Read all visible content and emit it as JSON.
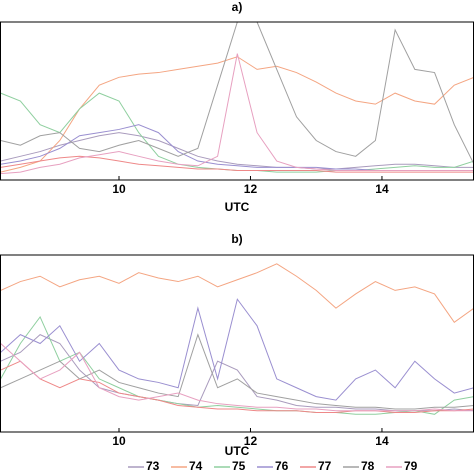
{
  "chart_data": [
    {
      "type": "line",
      "title": "a)",
      "xlabel": "UTC",
      "x": [
        8.2,
        8.5,
        8.8,
        9.1,
        9.4,
        9.7,
        10,
        10.3,
        10.6,
        10.9,
        11.2,
        11.5,
        11.8,
        12.1,
        12.4,
        12.7,
        13,
        13.3,
        13.6,
        13.9,
        14.2,
        14.5,
        14.8,
        15.1,
        15.4
      ],
      "xlim": [
        8.19,
        15.4
      ],
      "xticks": [
        10,
        12,
        14
      ],
      "ylim": [
        0,
        100
      ],
      "series": [
        {
          "color": "#a99bbd",
          "values": [
            12,
            15,
            18,
            22,
            25,
            28,
            30,
            28,
            25,
            20,
            15,
            12,
            10,
            9,
            8,
            8,
            7,
            7,
            8,
            9,
            10,
            10,
            9,
            8,
            8
          ]
        },
        {
          "color": "#f4a582",
          "values": [
            5,
            8,
            12,
            25,
            45,
            60,
            65,
            67,
            68,
            70,
            72,
            74,
            78,
            70,
            72,
            68,
            62,
            55,
            50,
            48,
            55,
            50,
            48,
            60,
            65
          ]
        },
        {
          "color": "#8fcf9f",
          "values": [
            55,
            50,
            35,
            30,
            45,
            55,
            50,
            30,
            15,
            10,
            8,
            7,
            6,
            6,
            5,
            5,
            5,
            6,
            6,
            7,
            8,
            9,
            8,
            8,
            12
          ]
        },
        {
          "color": "#9a8fd0",
          "values": [
            10,
            12,
            15,
            20,
            28,
            30,
            32,
            35,
            30,
            18,
            12,
            10,
            9,
            8,
            8,
            8,
            8,
            7,
            7,
            6,
            6,
            6,
            6,
            6,
            6
          ]
        },
        {
          "color": "#ee8888",
          "values": [
            8,
            10,
            12,
            14,
            15,
            14,
            12,
            10,
            9,
            8,
            7,
            7,
            6,
            6,
            6,
            6,
            6,
            5,
            5,
            5,
            5,
            5,
            5,
            5,
            5
          ]
        },
        {
          "color": "#a0a0a0",
          "values": [
            25,
            22,
            28,
            30,
            20,
            18,
            22,
            25,
            20,
            15,
            20,
            60,
            100,
            100,
            70,
            40,
            25,
            18,
            15,
            25,
            95,
            70,
            68,
            35,
            10
          ]
        },
        {
          "color": "#e7a0c0",
          "values": [
            4,
            5,
            8,
            10,
            14,
            16,
            18,
            15,
            12,
            10,
            9,
            15,
            80,
            30,
            12,
            8,
            7,
            6,
            6,
            6,
            6,
            6,
            6,
            6,
            6
          ]
        }
      ]
    },
    {
      "type": "line",
      "title": "b)",
      "xlabel": "UTC",
      "x": [
        8.2,
        8.5,
        8.8,
        9.1,
        9.4,
        9.7,
        10,
        10.3,
        10.6,
        10.9,
        11.2,
        11.5,
        11.8,
        12.1,
        12.4,
        12.7,
        13,
        13.3,
        13.6,
        13.9,
        14.2,
        14.5,
        14.8,
        15.1,
        15.4
      ],
      "xlim": [
        8.19,
        15.4
      ],
      "xticks": [
        10,
        12,
        14
      ],
      "ylim": [
        0,
        100
      ],
      "series": [
        {
          "name": "73",
          "color": "#a99bbd",
          "values": [
            40,
            45,
            55,
            50,
            35,
            25,
            22,
            20,
            18,
            16,
            15,
            40,
            35,
            20,
            18,
            15,
            14,
            14,
            13,
            13,
            12,
            12,
            12,
            13,
            12
          ]
        },
        {
          "name": "74",
          "color": "#f4a582",
          "values": [
            80,
            85,
            88,
            82,
            86,
            88,
            84,
            90,
            87,
            85,
            88,
            82,
            86,
            90,
            95,
            88,
            80,
            70,
            78,
            85,
            80,
            82,
            78,
            62,
            70
          ]
        },
        {
          "name": "75",
          "color": "#8fcf9f",
          "values": [
            30,
            50,
            65,
            40,
            45,
            30,
            25,
            20,
            18,
            16,
            14,
            15,
            14,
            13,
            12,
            12,
            11,
            11,
            10,
            10,
            11,
            12,
            10,
            18,
            20
          ]
        },
        {
          "name": "76",
          "color": "#9a8fd0",
          "values": [
            45,
            55,
            50,
            60,
            40,
            50,
            35,
            30,
            28,
            25,
            70,
            30,
            75,
            60,
            30,
            25,
            20,
            18,
            30,
            35,
            25,
            40,
            30,
            22,
            25
          ]
        },
        {
          "name": "77",
          "color": "#ee8888",
          "values": [
            35,
            40,
            30,
            25,
            30,
            28,
            22,
            20,
            18,
            15,
            14,
            13,
            13,
            12,
            12,
            12,
            11,
            11,
            12,
            12,
            11,
            11,
            12,
            12,
            13
          ]
        },
        {
          "name": "78",
          "color": "#a0a0a0",
          "values": [
            25,
            30,
            35,
            40,
            30,
            35,
            28,
            25,
            22,
            20,
            55,
            25,
            30,
            22,
            20,
            18,
            16,
            15,
            14,
            14,
            13,
            13,
            14,
            14,
            15
          ]
        },
        {
          "name": "79",
          "color": "#e7a0c0",
          "values": [
            50,
            40,
            30,
            35,
            45,
            25,
            20,
            18,
            20,
            22,
            18,
            16,
            15,
            14,
            14,
            13,
            13,
            12,
            12,
            12,
            12,
            12,
            13,
            12,
            12
          ]
        }
      ]
    }
  ]
}
